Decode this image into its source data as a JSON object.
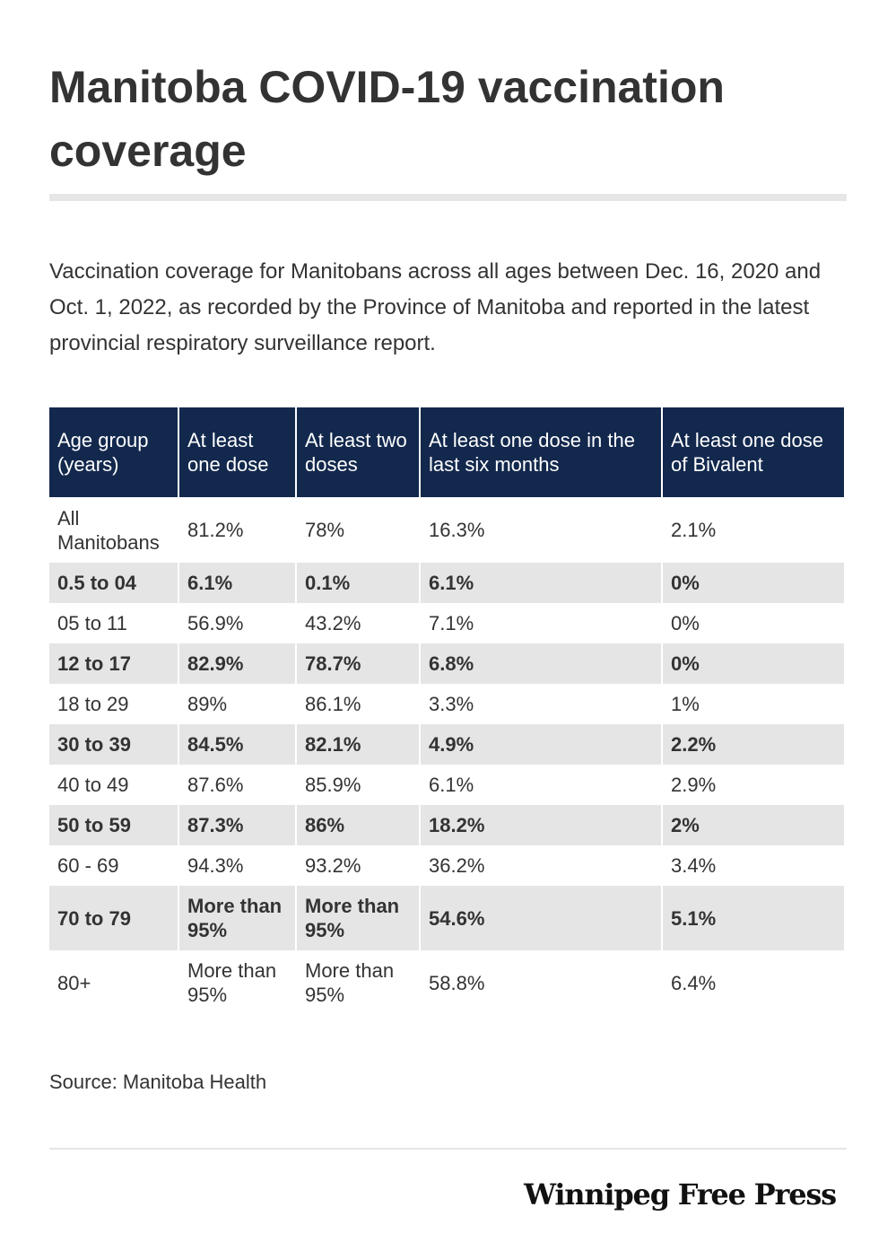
{
  "header": {
    "title": "Manitoba COVID-19 vaccination coverage",
    "subtitle": "Vaccination coverage for Manitobans across all ages between Dec. 16, 2020 and Oct. 1, 2022, as recorded by the Province of Manitoba and reported in the latest provincial respiratory surveillance report."
  },
  "footer": {
    "source": "Source: Manitoba Health",
    "logo_text": "Winnipeg Free Press"
  },
  "colors": {
    "header_bg": "#13284d",
    "header_text": "#ffffff",
    "row_shade": "#e5e5e5",
    "text": "#333333",
    "rule": "#e6e6e6"
  },
  "chart_data": {
    "type": "table",
    "title": "Manitoba COVID-19 vaccination coverage",
    "columns": [
      "Age group (years)",
      "At least one dose",
      "At least two doses",
      "At least one dose in the last six months",
      "At least one dose of Bivalent"
    ],
    "rows": [
      [
        "All Manitobans",
        "81.2%",
        "78%",
        "16.3%",
        "2.1%"
      ],
      [
        "0.5 to 04",
        "6.1%",
        "0.1%",
        "6.1%",
        "0%"
      ],
      [
        "05 to 11",
        "56.9%",
        "43.2%",
        "7.1%",
        "0%"
      ],
      [
        "12 to 17",
        "82.9%",
        "78.7%",
        "6.8%",
        "0%"
      ],
      [
        "18 to 29",
        "89%",
        "86.1%",
        "3.3%",
        "1%"
      ],
      [
        "30 to 39",
        "84.5%",
        "82.1%",
        "4.9%",
        "2.2%"
      ],
      [
        "40 to 49",
        "87.6%",
        "85.9%",
        "6.1%",
        "2.9%"
      ],
      [
        "50 to 59",
        "87.3%",
        "86%",
        "18.2%",
        "2%"
      ],
      [
        "60 - 69",
        "94.3%",
        "93.2%",
        "36.2%",
        "3.4%"
      ],
      [
        "70 to 79",
        "More than 95%",
        "More than 95%",
        "54.6%",
        "5.1%"
      ],
      [
        "80+",
        "More than 95%",
        "More than 95%",
        "58.8%",
        "6.4%"
      ]
    ]
  }
}
